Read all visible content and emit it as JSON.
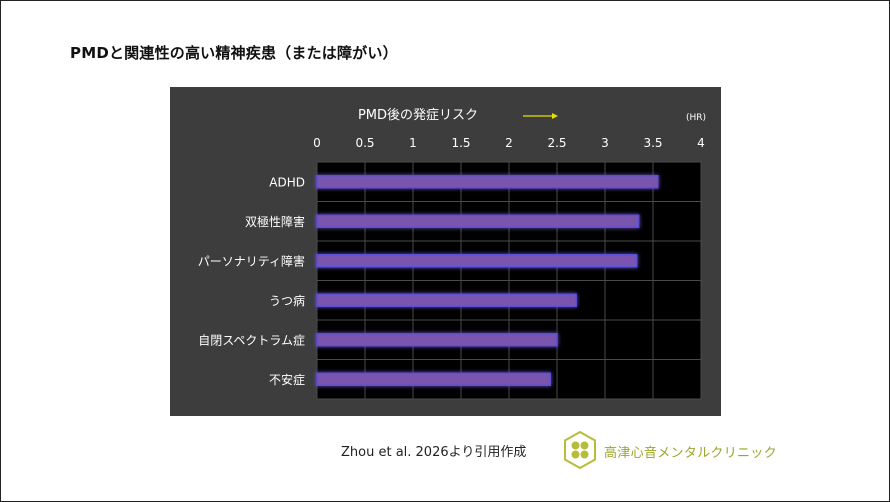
{
  "slide": {
    "title": "PMDと関連性の高い精神疾患（または障がい）",
    "source": "Zhou et al. 2026より引用作成",
    "clinic_name": "高津心音メンタルクリニック"
  },
  "colors": {
    "chart_bg": "#3d3d3d",
    "plot_bg": "#000000",
    "bar": "#7a55b0",
    "bar_glow": "#5a4fd6",
    "arrow": "#e8e000",
    "logo": "#b7bd3a",
    "clinic_text": "#9aa52c"
  },
  "logo": {
    "icon": "clover-hexagon-icon"
  },
  "chart_data": {
    "type": "bar",
    "orientation": "horizontal",
    "title": "PMD後の発症リスク",
    "title_arrow": "→",
    "unit_label": "(HR)",
    "categories": [
      "ADHD",
      "双極性障害",
      "パーソナリティ障害",
      "うつ病",
      "自閉スペクトラム症",
      "不安症"
    ],
    "values": [
      3.55,
      3.35,
      3.33,
      2.7,
      2.5,
      2.43
    ],
    "xlim": [
      0,
      4
    ],
    "ticks": [
      "0",
      "0.5",
      "1",
      "1.5",
      "2",
      "2.5",
      "3",
      "3.5",
      "4"
    ],
    "tick_values": [
      0,
      0.5,
      1,
      1.5,
      2,
      2.5,
      3,
      3.5,
      4
    ],
    "axis_position": "top",
    "grid": true
  }
}
